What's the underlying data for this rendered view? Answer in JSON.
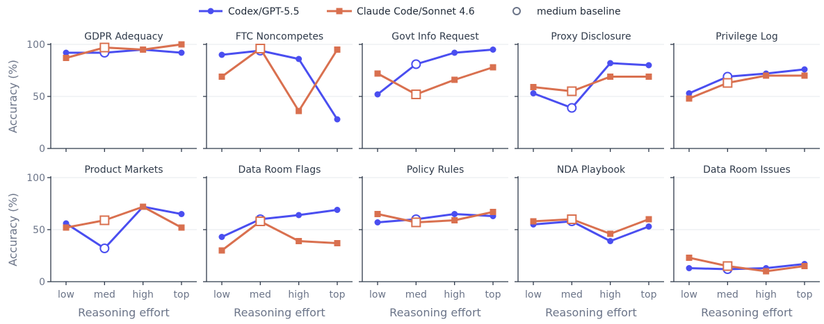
{
  "chart_data": {
    "type": "line",
    "legend": {
      "placement": "top-center",
      "entries": [
        {
          "key": "codex",
          "label": "Codex/GPT-5.5",
          "color": "#4a4ef0",
          "marker": "circle"
        },
        {
          "key": "claude",
          "label": "Claude Code/Sonnet 4.6",
          "color": "#d9704f",
          "marker": "square"
        },
        {
          "key": "baseline",
          "label": "medium baseline",
          "color": "#6b7488",
          "marker": "hollow-circle"
        }
      ]
    },
    "categories": [
      "low",
      "med",
      "high",
      "top"
    ],
    "xlabel": "Reasoning effort",
    "ylabel": "Accuracy (%)",
    "ylim": [
      0,
      100
    ],
    "yticks": [
      0,
      50,
      100
    ],
    "grid": true,
    "baseline_category": "med",
    "colors": {
      "codex": "#4a4ef0",
      "claude": "#d9704f",
      "axis": "#2f3a4a",
      "grid": "#e6e8ec"
    },
    "panels": [
      {
        "title": "GDPR Adequacy",
        "series": [
          {
            "name": "Codex/GPT-5.5",
            "values": [
              92,
              92,
              95,
              92
            ]
          },
          {
            "name": "Claude Code/Sonnet 4.6",
            "values": [
              87,
              97,
              95,
              100
            ]
          }
        ]
      },
      {
        "title": "FTC Noncompetes",
        "series": [
          {
            "name": "Codex/GPT-5.5",
            "values": [
              90,
              94,
              86,
              28
            ]
          },
          {
            "name": "Claude Code/Sonnet 4.6",
            "values": [
              69,
              96,
              36,
              95
            ]
          }
        ]
      },
      {
        "title": "Govt Info Request",
        "series": [
          {
            "name": "Codex/GPT-5.5",
            "values": [
              52,
              81,
              92,
              95
            ]
          },
          {
            "name": "Claude Code/Sonnet 4.6",
            "values": [
              72,
              52,
              66,
              78
            ]
          }
        ]
      },
      {
        "title": "Proxy Disclosure",
        "series": [
          {
            "name": "Codex/GPT-5.5",
            "values": [
              53,
              39,
              82,
              80
            ]
          },
          {
            "name": "Claude Code/Sonnet 4.6",
            "values": [
              59,
              55,
              69,
              69
            ]
          }
        ]
      },
      {
        "title": "Privilege Log",
        "series": [
          {
            "name": "Codex/GPT-5.5",
            "values": [
              53,
              69,
              72,
              76
            ]
          },
          {
            "name": "Claude Code/Sonnet 4.6",
            "values": [
              48,
              63,
              70,
              70
            ]
          }
        ]
      },
      {
        "title": "Product Markets",
        "series": [
          {
            "name": "Codex/GPT-5.5",
            "values": [
              56,
              32,
              72,
              65
            ]
          },
          {
            "name": "Claude Code/Sonnet 4.6",
            "values": [
              52,
              59,
              72,
              52
            ]
          }
        ]
      },
      {
        "title": "Data Room Flags",
        "series": [
          {
            "name": "Codex/GPT-5.5",
            "values": [
              43,
              60,
              64,
              69
            ]
          },
          {
            "name": "Claude Code/Sonnet 4.6",
            "values": [
              30,
              58,
              39,
              37
            ]
          }
        ]
      },
      {
        "title": "Policy Rules",
        "series": [
          {
            "name": "Codex/GPT-5.5",
            "values": [
              57,
              60,
              65,
              63
            ]
          },
          {
            "name": "Claude Code/Sonnet 4.6",
            "values": [
              65,
              57,
              59,
              67
            ]
          }
        ]
      },
      {
        "title": "NDA Playbook",
        "series": [
          {
            "name": "Codex/GPT-5.5",
            "values": [
              55,
              58,
              39,
              53
            ]
          },
          {
            "name": "Claude Code/Sonnet 4.6",
            "values": [
              58,
              60,
              46,
              60
            ]
          }
        ]
      },
      {
        "title": "Data Room Issues",
        "series": [
          {
            "name": "Codex/GPT-5.5",
            "values": [
              13,
              12,
              13,
              17
            ]
          },
          {
            "name": "Claude Code/Sonnet 4.6",
            "values": [
              23,
              15,
              10,
              15
            ]
          }
        ]
      }
    ]
  }
}
